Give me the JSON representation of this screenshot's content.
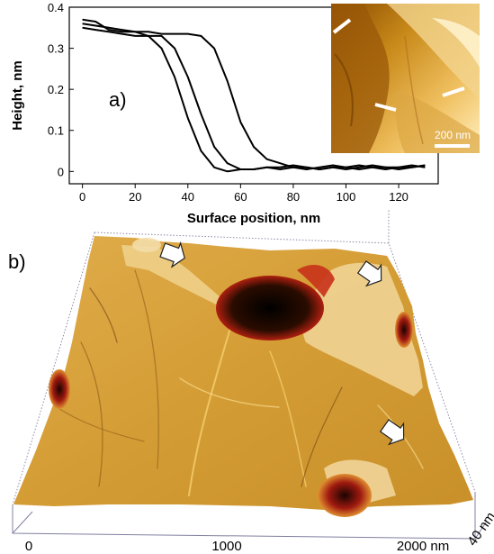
{
  "chart_data": [
    {
      "type": "line",
      "panel_label": "a)",
      "xlabel": "Surface position, nm",
      "ylabel": "Height, nm",
      "xlim": [
        -5,
        135
      ],
      "ylim": [
        -0.03,
        0.4
      ],
      "xticks": [
        "0",
        "20",
        "40",
        "60",
        "80",
        "100",
        "120"
      ],
      "yticks": [
        "0",
        "0.1",
        "0.2",
        "0.3",
        "0.4"
      ],
      "series": [
        {
          "x": [
            0,
            5,
            10,
            15,
            20,
            25,
            30,
            35,
            40,
            45,
            50,
            55,
            60,
            65,
            70,
            75,
            80,
            85,
            90,
            95,
            100,
            105,
            110,
            115,
            120,
            125,
            130
          ],
          "values": [
            0.36,
            0.355,
            0.35,
            0.345,
            0.34,
            0.33,
            0.3,
            0.23,
            0.13,
            0.05,
            0.01,
            0.0,
            0.005,
            0.005,
            0.01,
            0.01,
            0.015,
            0.01,
            0.005,
            0.01,
            0.005,
            0.01,
            0.015,
            0.01,
            0.01,
            0.015,
            0.01
          ]
        },
        {
          "x": [
            0,
            5,
            10,
            15,
            20,
            25,
            30,
            35,
            40,
            45,
            50,
            55,
            60,
            65,
            70,
            75,
            80,
            85,
            90,
            95,
            100,
            105,
            110,
            115,
            120,
            125,
            130
          ],
          "values": [
            0.35,
            0.345,
            0.34,
            0.335,
            0.33,
            0.33,
            0.33,
            0.3,
            0.23,
            0.14,
            0.06,
            0.02,
            0.005,
            0.005,
            0.01,
            0.005,
            0.01,
            0.005,
            0.01,
            0.015,
            0.01,
            0.005,
            0.01,
            0.01,
            0.005,
            0.01,
            0.015
          ]
        },
        {
          "x": [
            0,
            5,
            10,
            15,
            20,
            25,
            30,
            35,
            40,
            45,
            50,
            55,
            60,
            65,
            70,
            75,
            80,
            85,
            90,
            95,
            100,
            105,
            110,
            115,
            120,
            125,
            130
          ],
          "values": [
            0.37,
            0.365,
            0.345,
            0.34,
            0.34,
            0.34,
            0.335,
            0.335,
            0.335,
            0.33,
            0.3,
            0.22,
            0.12,
            0.06,
            0.03,
            0.02,
            0.01,
            0.01,
            0.005,
            0.01,
            0.01,
            0.015,
            0.01,
            0.005,
            0.01,
            0.01,
            0.015
          ]
        }
      ],
      "inset": {
        "scale_bar_label": "200 nm",
        "colors": [
          "#8a4a00",
          "#c88a1a",
          "#f0c060",
          "#fff0c0"
        ]
      }
    },
    {
      "type": "surface-3d",
      "panel_label": "b)",
      "x_tick_labels": [
        "0",
        "1000",
        "2000 nm"
      ],
      "z_tick_label": "40 nm",
      "colors": {
        "surface": "#d9a23a",
        "surface_light": "#f2d8a0",
        "hole": "#1a0800",
        "rim": "#c8201a",
        "box_lines": "#8080a0"
      }
    }
  ]
}
